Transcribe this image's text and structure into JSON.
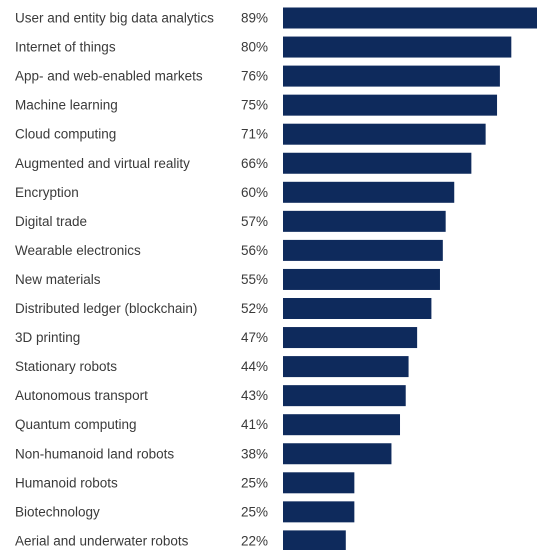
{
  "chart_data": {
    "type": "bar",
    "orientation": "horizontal",
    "categories": [
      "User and entity big data analytics",
      "Internet of things",
      "App- and web-enabled markets",
      "Machine learning",
      "Cloud computing",
      "Augmented and virtual reality",
      "Encryption",
      "Digital trade",
      "Wearable electronics",
      "New materials",
      "Distributed ledger (blockchain)",
      "3D printing",
      "Stationary robots",
      "Autonomous transport",
      "Quantum computing",
      "Non-humanoid land robots",
      "Humanoid robots",
      "Biotechnology",
      "Aerial and underwater robots"
    ],
    "values": [
      89,
      80,
      76,
      75,
      71,
      66,
      60,
      57,
      56,
      55,
      52,
      47,
      44,
      43,
      41,
      38,
      25,
      25,
      22
    ],
    "value_labels": [
      "89%",
      "80%",
      "76%",
      "75%",
      "71%",
      "66%",
      "60%",
      "57%",
      "56%",
      "55%",
      "52%",
      "47%",
      "44%",
      "43%",
      "41%",
      "38%",
      "25%",
      "25%",
      "22%"
    ],
    "unit": "%",
    "bar_color": "#0e2a5c",
    "text_color": "#3a3a3a",
    "xlim": [
      0,
      89
    ],
    "grid": false,
    "legend": "none"
  }
}
